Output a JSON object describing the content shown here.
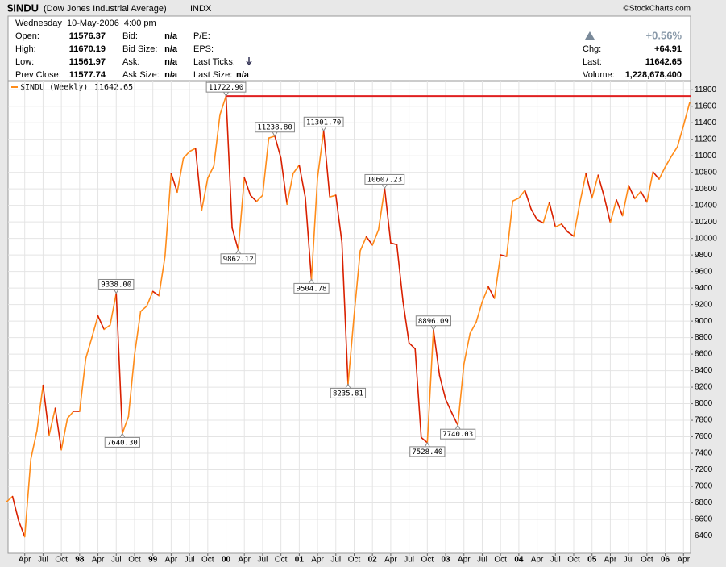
{
  "quote": {
    "symbol": "$INDU",
    "name": "(Dow Jones Industrial Average)",
    "exchange": "INDX",
    "copyright": "©StockCharts.com",
    "datetime": "Wednesday  10-May-2006  4:00 pm",
    "change_pct": "+0.56%",
    "columns": [
      [
        {
          "label": "Open:",
          "value": "11576.37"
        },
        {
          "label": "High:",
          "value": "11670.19"
        },
        {
          "label": "Low:",
          "value": "11561.97"
        },
        {
          "label": "Prev Close:",
          "value": "11577.74"
        }
      ],
      [
        {
          "label": "Bid:",
          "value": "n/a"
        },
        {
          "label": "Bid Size:",
          "value": "n/a"
        },
        {
          "label": "Ask:",
          "value": "n/a"
        },
        {
          "label": "Ask Size:",
          "value": "n/a"
        }
      ],
      [
        {
          "label": "P/E:"
        },
        {
          "label": "EPS:"
        },
        {
          "label": "Last Ticks:"
        },
        {
          "label": "Last Size:",
          "value": "n/a"
        }
      ],
      [
        {
          "label": "Chg:",
          "value": "+64.91"
        },
        {
          "label": "Last:",
          "value": "11642.65"
        },
        {
          "label": "Volume:",
          "value": "1,228,678,400"
        }
      ]
    ]
  },
  "chart_data": {
    "type": "line",
    "grid": true,
    "x": [
      "1997-01",
      "1997-02",
      "1997-03",
      "1997-04",
      "1997-05",
      "1997-06",
      "1997-07",
      "1997-08",
      "1997-09",
      "1997-10",
      "1997-11",
      "1997-12",
      "1998-01",
      "1998-02",
      "1998-03",
      "1998-04",
      "1998-05",
      "1998-06",
      "1998-07",
      "1998-08",
      "1998-09",
      "1998-10",
      "1998-11",
      "1998-12",
      "1999-01",
      "1999-02",
      "1999-03",
      "1999-04",
      "1999-05",
      "1999-06",
      "1999-07",
      "1999-08",
      "1999-09",
      "1999-10",
      "1999-11",
      "1999-12",
      "2000-01",
      "2000-02",
      "2000-03",
      "2000-04",
      "2000-05",
      "2000-06",
      "2000-07",
      "2000-08",
      "2000-09",
      "2000-10",
      "2000-11",
      "2000-12",
      "2001-01",
      "2001-02",
      "2001-03",
      "2001-04",
      "2001-05",
      "2001-06",
      "2001-07",
      "2001-08",
      "2001-09",
      "2001-10",
      "2001-11",
      "2001-12",
      "2002-01",
      "2002-02",
      "2002-03",
      "2002-04",
      "2002-05",
      "2002-06",
      "2002-07",
      "2002-08",
      "2002-09",
      "2002-10",
      "2002-11",
      "2002-12",
      "2003-01",
      "2003-02",
      "2003-03",
      "2003-04",
      "2003-05",
      "2003-06",
      "2003-07",
      "2003-08",
      "2003-09",
      "2003-10",
      "2003-11",
      "2003-12",
      "2004-01",
      "2004-02",
      "2004-03",
      "2004-04",
      "2004-05",
      "2004-06",
      "2004-07",
      "2004-08",
      "2004-09",
      "2004-10",
      "2004-11",
      "2004-12",
      "2005-01",
      "2005-02",
      "2005-03",
      "2005-04",
      "2005-05",
      "2005-06",
      "2005-07",
      "2005-08",
      "2005-09",
      "2005-10",
      "2005-11",
      "2005-12",
      "2006-01",
      "2006-02",
      "2006-03",
      "2006-04",
      "2006-05"
    ],
    "series": [
      {
        "name": "$INDU (Weekly)",
        "color": "#ff8c1a",
        "down_color": "#d92000",
        "values": [
          6813,
          6877,
          6583,
          6391,
          7331,
          7673,
          8223,
          7622,
          7945,
          7442,
          7823,
          7908,
          7907,
          8546,
          8800,
          9063,
          8900,
          8952,
          9338,
          7640.3,
          7843,
          8592,
          9117,
          9181,
          9359,
          9307,
          9786,
          10789,
          10560,
          10970,
          11052,
          11090,
          10337,
          10730,
          10878,
          11497,
          11722.9,
          10128,
          9862.12,
          10734,
          10522,
          10448,
          10522,
          11215,
          11238.8,
          10971,
          10414,
          10787,
          10887,
          10495,
          9504.78,
          10735,
          11301.7,
          10502,
          10523,
          9950,
          8235.81,
          9075,
          9851,
          10021,
          9920,
          10106,
          10607.23,
          9946,
          9925,
          9243,
          8736,
          8664,
          7592,
          7528.4,
          8896.09,
          8342,
          8054,
          7891,
          7740.03,
          8480,
          8850,
          8985,
          9233,
          9415,
          9275,
          9801,
          9782,
          10453,
          10488,
          10583,
          10358,
          10226,
          10188,
          10435,
          10140,
          10174,
          10080,
          10027,
          10428,
          10783,
          10490,
          10766,
          10504,
          10193,
          10467,
          10275,
          10641,
          10482,
          10569,
          10440,
          10806,
          10718,
          10865,
          10993,
          11109,
          11367,
          11642.65
        ]
      }
    ],
    "annotations": [
      {
        "x": "1998-07",
        "value": 9338,
        "label": "9338.00",
        "position": "above"
      },
      {
        "x": "1998-08",
        "value": 7640.3,
        "label": "7640.30",
        "position": "below"
      },
      {
        "x": "2000-01",
        "value": 11722.9,
        "label": "11722.90",
        "position": "above"
      },
      {
        "x": "2000-03",
        "value": 9862.12,
        "label": "9862.12",
        "position": "below"
      },
      {
        "x": "2000-09",
        "value": 11238.8,
        "label": "11238.80",
        "position": "above"
      },
      {
        "x": "2001-03",
        "value": 9504.78,
        "label": "9504.78",
        "position": "below"
      },
      {
        "x": "2001-05",
        "value": 11301.7,
        "label": "11301.70",
        "position": "above"
      },
      {
        "x": "2001-09",
        "value": 8235.81,
        "label": "8235.81",
        "position": "below"
      },
      {
        "x": "2002-03",
        "value": 10607.23,
        "label": "10607.23",
        "position": "above"
      },
      {
        "x": "2002-10",
        "value": 7528.4,
        "label": "7528.40",
        "position": "below"
      },
      {
        "x": "2002-11",
        "value": 8896.09,
        "label": "8896.09",
        "position": "above"
      },
      {
        "x": "2003-03",
        "value": 7740.03,
        "label": "7740.03",
        "position": "below"
      }
    ],
    "reference_color": "#e02020",
    "ylim": [
      6190,
      11900
    ],
    "yticks": [
      6400,
      6600,
      6800,
      7000,
      7200,
      7400,
      7600,
      7800,
      8000,
      8200,
      8400,
      8600,
      8800,
      9000,
      9200,
      9400,
      9600,
      9800,
      10000,
      10200,
      10400,
      10600,
      10800,
      11000,
      11200,
      11400,
      11600,
      11800
    ],
    "xticks": [
      {
        "value": "1997-04",
        "label": "Apr"
      },
      {
        "value": "1997-07",
        "label": "Jul"
      },
      {
        "value": "1997-10",
        "label": "Oct"
      },
      {
        "value": "1998-01",
        "label": "98"
      },
      {
        "value": "1998-04",
        "label": "Apr"
      },
      {
        "value": "1998-07",
        "label": "Jul"
      },
      {
        "value": "1998-10",
        "label": "Oct"
      },
      {
        "value": "1999-01",
        "label": "99"
      },
      {
        "value": "1999-04",
        "label": "Apr"
      },
      {
        "value": "1999-07",
        "label": "Jul"
      },
      {
        "value": "1999-10",
        "label": "Oct"
      },
      {
        "value": "2000-01",
        "label": "00"
      },
      {
        "value": "2000-04",
        "label": "Apr"
      },
      {
        "value": "2000-07",
        "label": "Jul"
      },
      {
        "value": "2000-10",
        "label": "Oct"
      },
      {
        "value": "2001-01",
        "label": "01"
      },
      {
        "value": "2001-04",
        "label": "Apr"
      },
      {
        "value": "2001-07",
        "label": "Jul"
      },
      {
        "value": "2001-10",
        "label": "Oct"
      },
      {
        "value": "2002-01",
        "label": "02"
      },
      {
        "value": "2002-04",
        "label": "Apr"
      },
      {
        "value": "2002-07",
        "label": "Jul"
      },
      {
        "value": "2002-10",
        "label": "Oct"
      },
      {
        "value": "2003-01",
        "label": "03"
      },
      {
        "value": "2003-04",
        "label": "Apr"
      },
      {
        "value": "2003-07",
        "label": "Jul"
      },
      {
        "value": "2003-10",
        "label": "Oct"
      },
      {
        "value": "2004-01",
        "label": "04"
      },
      {
        "value": "2004-04",
        "label": "Apr"
      },
      {
        "value": "2004-07",
        "label": "Jul"
      },
      {
        "value": "2004-10",
        "label": "Oct"
      },
      {
        "value": "2005-01",
        "label": "05"
      },
      {
        "value": "2005-04",
        "label": "Apr"
      },
      {
        "value": "2005-07",
        "label": "Jul"
      },
      {
        "value": "2005-10",
        "label": "Oct"
      },
      {
        "value": "2006-01",
        "label": "06"
      },
      {
        "value": "2006-04",
        "label": "Apr"
      }
    ]
  }
}
